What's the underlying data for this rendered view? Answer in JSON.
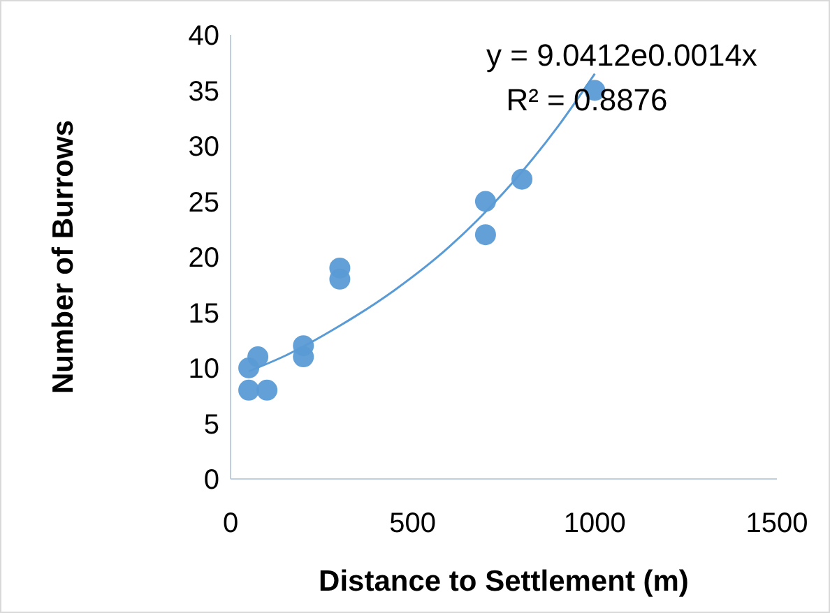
{
  "chart_data": {
    "type": "scatter",
    "xlabel": "Distance to Settlement (m)",
    "ylabel": "Number of Burrows",
    "xlim": [
      0,
      1500
    ],
    "xticks": [
      0,
      500,
      1000,
      1500
    ],
    "ylim": [
      0,
      40
    ],
    "yticks": [
      0,
      5,
      10,
      15,
      20,
      25,
      30,
      35,
      40
    ],
    "grid": false,
    "marker": "circle",
    "annotations": [
      "y = 9.0412e0.0014x",
      "R² = 0.8876"
    ],
    "series": [
      {
        "color": "#5b9bd5",
        "x": [
          50,
          50,
          100,
          75,
          200,
          200,
          300,
          300,
          700,
          700,
          800,
          1000
        ],
        "values": [
          10,
          8,
          8,
          11,
          12,
          11,
          19,
          18,
          25,
          22,
          27,
          35
        ]
      },
      {
        "type": "line",
        "color": "#5b9bd5",
        "line_style": "solid",
        "marker": "none",
        "x": [
          50,
          150,
          300,
          450,
          600,
          750,
          900,
          1000
        ],
        "values": [
          9.7,
          11.1,
          13.8,
          17.0,
          20.9,
          25.8,
          31.8,
          36.5
        ]
      }
    ]
  }
}
